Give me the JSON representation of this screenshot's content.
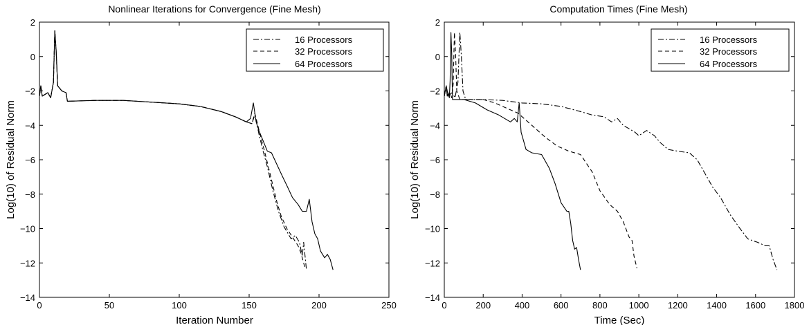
{
  "chart_data": [
    {
      "type": "line",
      "title": "Nonlinear Iterations for Convergence (Fine Mesh)",
      "xlabel": "Iteration Number",
      "ylabel": "Log(10) of Residual Norm",
      "xlim": [
        0,
        250
      ],
      "ylim": [
        -14,
        2
      ],
      "xticks": [
        0,
        50,
        100,
        150,
        200,
        250
      ],
      "yticks": [
        2,
        0,
        -2,
        -4,
        -6,
        -8,
        -10,
        -12,
        -14
      ],
      "grid": false,
      "legend_position": "top-right",
      "series": [
        {
          "name": "16 Processors",
          "style": "dashdot",
          "points": [
            [
              0,
              -2.3
            ],
            [
              1,
              -1.7
            ],
            [
              2,
              -2.3
            ],
            [
              4,
              -2.2
            ],
            [
              6,
              -2.1
            ],
            [
              8,
              -2.4
            ],
            [
              10,
              -1.5
            ],
            [
              11,
              1.5
            ],
            [
              12,
              0.3
            ],
            [
              13,
              -1.7
            ],
            [
              16,
              -2.0
            ],
            [
              19,
              -2.1
            ],
            [
              20,
              -2.6
            ],
            [
              40,
              -2.55
            ],
            [
              60,
              -2.55
            ],
            [
              80,
              -2.65
            ],
            [
              100,
              -2.75
            ],
            [
              115,
              -2.9
            ],
            [
              130,
              -3.2
            ],
            [
              140,
              -3.5
            ],
            [
              148,
              -3.8
            ],
            [
              152,
              -3.9
            ],
            [
              154,
              -3.4
            ],
            [
              155,
              -3.7
            ],
            [
              157,
              -4.5
            ],
            [
              160,
              -5.5
            ],
            [
              163,
              -6.4
            ],
            [
              167,
              -7.8
            ],
            [
              171,
              -9.0
            ],
            [
              175,
              -9.9
            ],
            [
              180,
              -10.6
            ],
            [
              183,
              -10.4
            ],
            [
              186,
              -10.8
            ],
            [
              188,
              -11.6
            ],
            [
              189,
              -10.8
            ],
            [
              191,
              -12.4
            ]
          ]
        },
        {
          "name": "32 Processors",
          "style": "dashed",
          "points": [
            [
              0,
              -2.3
            ],
            [
              1,
              -1.7
            ],
            [
              2,
              -2.3
            ],
            [
              4,
              -2.2
            ],
            [
              6,
              -2.1
            ],
            [
              8,
              -2.4
            ],
            [
              10,
              -1.5
            ],
            [
              11,
              1.5
            ],
            [
              12,
              0.3
            ],
            [
              13,
              -1.7
            ],
            [
              16,
              -2.0
            ],
            [
              19,
              -2.1
            ],
            [
              20,
              -2.6
            ],
            [
              40,
              -2.55
            ],
            [
              60,
              -2.55
            ],
            [
              80,
              -2.65
            ],
            [
              100,
              -2.75
            ],
            [
              115,
              -2.9
            ],
            [
              130,
              -3.2
            ],
            [
              140,
              -3.5
            ],
            [
              148,
              -3.8
            ],
            [
              152,
              -3.9
            ],
            [
              154,
              -3.3
            ],
            [
              155,
              -3.6
            ],
            [
              158,
              -4.6
            ],
            [
              161,
              -5.5
            ],
            [
              164,
              -6.5
            ],
            [
              167,
              -7.5
            ],
            [
              170,
              -8.5
            ],
            [
              173,
              -9.3
            ],
            [
              177,
              -10.0
            ],
            [
              181,
              -10.5
            ],
            [
              185,
              -11.0
            ],
            [
              187,
              -11.4
            ],
            [
              190,
              -12.3
            ]
          ]
        },
        {
          "name": "64 Processors",
          "style": "solid",
          "points": [
            [
              0,
              -2.3
            ],
            [
              1,
              -1.7
            ],
            [
              2,
              -2.3
            ],
            [
              4,
              -2.2
            ],
            [
              6,
              -2.1
            ],
            [
              8,
              -2.4
            ],
            [
              10,
              -1.5
            ],
            [
              11,
              1.5
            ],
            [
              12,
              0.3
            ],
            [
              13,
              -1.7
            ],
            [
              16,
              -2.0
            ],
            [
              19,
              -2.1
            ],
            [
              20,
              -2.6
            ],
            [
              40,
              -2.55
            ],
            [
              60,
              -2.55
            ],
            [
              80,
              -2.65
            ],
            [
              100,
              -2.75
            ],
            [
              115,
              -2.9
            ],
            [
              130,
              -3.2
            ],
            [
              140,
              -3.5
            ],
            [
              148,
              -3.8
            ],
            [
              151,
              -3.6
            ],
            [
              153,
              -2.7
            ],
            [
              155,
              -3.8
            ],
            [
              157,
              -4.3
            ],
            [
              160,
              -4.9
            ],
            [
              163,
              -5.5
            ],
            [
              166,
              -5.6
            ],
            [
              170,
              -6.3
            ],
            [
              174,
              -7.0
            ],
            [
              177,
              -7.5
            ],
            [
              181,
              -8.2
            ],
            [
              185,
              -8.6
            ],
            [
              188,
              -9.0
            ],
            [
              191,
              -9.0
            ],
            [
              193,
              -8.3
            ],
            [
              195,
              -9.6
            ],
            [
              197,
              -10.3
            ],
            [
              199,
              -10.6
            ],
            [
              201,
              -11.3
            ],
            [
              204,
              -11.7
            ],
            [
              206,
              -11.5
            ],
            [
              208,
              -11.8
            ],
            [
              210,
              -12.4
            ]
          ]
        }
      ]
    },
    {
      "type": "line",
      "title": "Computation Times (Fine Mesh)",
      "xlabel": "Time (Sec)",
      "ylabel": "Log(10) of Residual Norm",
      "xlim": [
        0,
        1800
      ],
      "ylim": [
        -14,
        2
      ],
      "xticks": [
        0,
        200,
        400,
        600,
        800,
        1000,
        1200,
        1400,
        1600,
        1800
      ],
      "yticks": [
        2,
        0,
        -2,
        -4,
        -6,
        -8,
        -10,
        -12,
        -14
      ],
      "grid": false,
      "legend_position": "top-right",
      "series": [
        {
          "name": "16 Processors",
          "style": "dashdot",
          "points": [
            [
              0,
              -2.3
            ],
            [
              10,
              -1.7
            ],
            [
              20,
              -2.3
            ],
            [
              40,
              -2.1
            ],
            [
              55,
              -2.4
            ],
            [
              70,
              -1.5
            ],
            [
              80,
              1.4
            ],
            [
              88,
              0.0
            ],
            [
              96,
              -2.0
            ],
            [
              110,
              -2.5
            ],
            [
              200,
              -2.5
            ],
            [
              300,
              -2.55
            ],
            [
              400,
              -2.7
            ],
            [
              500,
              -2.75
            ],
            [
              600,
              -2.9
            ],
            [
              700,
              -3.2
            ],
            [
              760,
              -3.4
            ],
            [
              820,
              -3.5
            ],
            [
              860,
              -3.8
            ],
            [
              890,
              -3.6
            ],
            [
              920,
              -4.0
            ],
            [
              950,
              -4.2
            ],
            [
              980,
              -4.4
            ],
            [
              1000,
              -4.6
            ],
            [
              1040,
              -4.3
            ],
            [
              1080,
              -4.6
            ],
            [
              1110,
              -5.0
            ],
            [
              1150,
              -5.4
            ],
            [
              1200,
              -5.5
            ],
            [
              1260,
              -5.6
            ],
            [
              1300,
              -6.0
            ],
            [
              1340,
              -6.8
            ],
            [
              1380,
              -7.6
            ],
            [
              1420,
              -8.2
            ],
            [
              1470,
              -9.2
            ],
            [
              1520,
              -10.0
            ],
            [
              1560,
              -10.6
            ],
            [
              1610,
              -10.8
            ],
            [
              1650,
              -11.0
            ],
            [
              1670,
              -11.0
            ],
            [
              1690,
              -11.8
            ],
            [
              1710,
              -12.4
            ]
          ]
        },
        {
          "name": "32 Processors",
          "style": "dashed",
          "points": [
            [
              0,
              -2.3
            ],
            [
              10,
              -1.7
            ],
            [
              20,
              -2.3
            ],
            [
              30,
              -2.1
            ],
            [
              38,
              -2.4
            ],
            [
              46,
              -1.6
            ],
            [
              52,
              1.4
            ],
            [
              58,
              0.2
            ],
            [
              64,
              -2.0
            ],
            [
              80,
              -2.5
            ],
            [
              200,
              -2.5
            ],
            [
              260,
              -2.7
            ],
            [
              320,
              -3.0
            ],
            [
              380,
              -3.3
            ],
            [
              400,
              -3.5
            ],
            [
              430,
              -3.8
            ],
            [
              470,
              -4.2
            ],
            [
              520,
              -4.7
            ],
            [
              580,
              -5.2
            ],
            [
              640,
              -5.5
            ],
            [
              700,
              -5.7
            ],
            [
              760,
              -6.7
            ],
            [
              800,
              -7.8
            ],
            [
              850,
              -8.6
            ],
            [
              890,
              -9.0
            ],
            [
              920,
              -9.6
            ],
            [
              940,
              -10.2
            ],
            [
              950,
              -10.5
            ],
            [
              965,
              -10.7
            ],
            [
              975,
              -11.6
            ],
            [
              990,
              -12.3
            ]
          ]
        },
        {
          "name": "64 Processors",
          "style": "solid",
          "points": [
            [
              0,
              -2.3
            ],
            [
              10,
              -1.7
            ],
            [
              15,
              -2.3
            ],
            [
              20,
              -2.1
            ],
            [
              26,
              -2.4
            ],
            [
              30,
              -1.4
            ],
            [
              34,
              1.4
            ],
            [
              38,
              0.2
            ],
            [
              42,
              -2.5
            ],
            [
              100,
              -2.5
            ],
            [
              160,
              -2.7
            ],
            [
              220,
              -3.1
            ],
            [
              280,
              -3.4
            ],
            [
              340,
              -3.8
            ],
            [
              360,
              -3.6
            ],
            [
              375,
              -3.8
            ],
            [
              385,
              -2.7
            ],
            [
              395,
              -4.4
            ],
            [
              420,
              -5.4
            ],
            [
              450,
              -5.6
            ],
            [
              500,
              -5.7
            ],
            [
              540,
              -6.5
            ],
            [
              570,
              -7.4
            ],
            [
              600,
              -8.5
            ],
            [
              630,
              -9.0
            ],
            [
              640,
              -9.0
            ],
            [
              650,
              -9.7
            ],
            [
              660,
              -10.7
            ],
            [
              670,
              -11.2
            ],
            [
              680,
              -11.1
            ],
            [
              690,
              -11.8
            ],
            [
              700,
              -12.4
            ]
          ]
        }
      ]
    }
  ]
}
